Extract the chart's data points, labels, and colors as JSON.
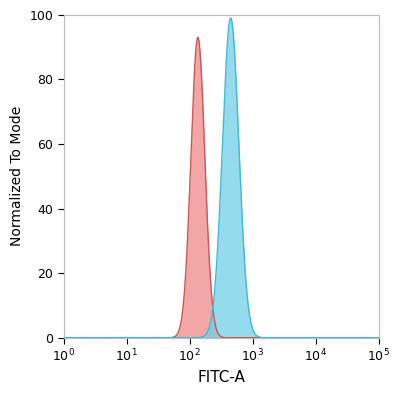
{
  "title": "",
  "xlabel": "FITC-A",
  "ylabel": "Normalized To Mode",
  "ylim": [
    0,
    100
  ],
  "yticks": [
    0,
    20,
    40,
    60,
    80,
    100
  ],
  "xtick_powers": [
    0,
    1,
    2,
    3,
    4,
    5
  ],
  "red_peak_log": 2.13,
  "red_sigma_log": 0.11,
  "red_max": 93,
  "blue_peak_log": 2.65,
  "blue_sigma_log": 0.13,
  "blue_max": 99,
  "red_fill_color": "#f08888",
  "red_edge_color": "#cc5555",
  "blue_fill_color": "#70d0e8",
  "blue_edge_color": "#40b8d8",
  "fill_alpha": 0.75,
  "background_color": "#ffffff",
  "figure_facecolor": "#ffffff",
  "spine_color": "#bbbbbb"
}
